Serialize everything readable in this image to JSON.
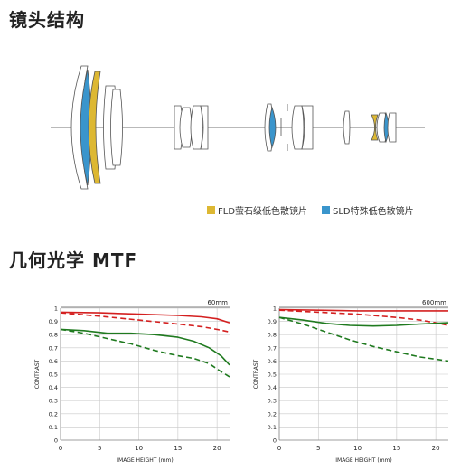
{
  "headings": {
    "lens_structure": "镜头结构",
    "mtf": "几何光学 MTF"
  },
  "legend": {
    "fld": {
      "label": "FLD萤石级低色散镜片",
      "color": "#ddb833"
    },
    "sld": {
      "label": "SLD特殊低色散镜片",
      "color": "#3a95cc"
    }
  },
  "chart_data": [
    {
      "type": "line",
      "title": "60mm",
      "xlabel": "IMAGE HEIGHT (mm)",
      "ylabel": "CONTRAST",
      "xlim": [
        0,
        21.6
      ],
      "ylim": [
        0,
        1
      ],
      "xticks": [
        0,
        5,
        10,
        15,
        20
      ],
      "yticks": [
        0,
        0.1,
        0.2,
        0.3,
        0.4,
        0.5,
        0.6,
        0.7,
        0.8,
        0.9,
        1
      ],
      "ytick_labels": [
        "0",
        "0.1",
        "0.2",
        "0.3",
        "0.4",
        "0.5",
        "0.6",
        "0.7",
        "0.8",
        "0.9",
        "1"
      ],
      "grid": true,
      "series": [
        {
          "color": "#d42020",
          "dash": "solid",
          "x": [
            0,
            5,
            10,
            15,
            18,
            20,
            21.6
          ],
          "values": [
            0.97,
            0.965,
            0.955,
            0.945,
            0.935,
            0.92,
            0.89
          ]
        },
        {
          "color": "#d42020",
          "dash": "dashed",
          "x": [
            0,
            5,
            10,
            15,
            18,
            20,
            21.6
          ],
          "values": [
            0.965,
            0.94,
            0.91,
            0.88,
            0.86,
            0.84,
            0.82
          ]
        },
        {
          "color": "#1f7a1f",
          "dash": "solid",
          "x": [
            0,
            3,
            6,
            9,
            12,
            15,
            17,
            19,
            20.5,
            21.6
          ],
          "values": [
            0.84,
            0.83,
            0.81,
            0.81,
            0.8,
            0.78,
            0.75,
            0.7,
            0.64,
            0.57
          ]
        },
        {
          "color": "#1f7a1f",
          "dash": "dashed",
          "x": [
            0,
            3,
            6,
            9,
            12,
            15,
            17,
            19,
            20.5,
            21.6
          ],
          "values": [
            0.84,
            0.81,
            0.77,
            0.73,
            0.68,
            0.64,
            0.62,
            0.58,
            0.52,
            0.48
          ]
        }
      ]
    },
    {
      "type": "line",
      "title": "600mm",
      "xlabel": "IMAGE HEIGHT (mm)",
      "ylabel": "CONTRAST",
      "xlim": [
        0,
        21.6
      ],
      "ylim": [
        0,
        1
      ],
      "xticks": [
        0,
        5,
        10,
        15,
        20
      ],
      "yticks": [
        0,
        0.1,
        0.2,
        0.3,
        0.4,
        0.5,
        0.6,
        0.7,
        0.8,
        0.9,
        1
      ],
      "ytick_labels": [
        "0",
        "0.1",
        "0.2",
        "0.3",
        "0.4",
        "0.5",
        "0.6",
        "0.7",
        "0.8",
        "0.9",
        "1"
      ],
      "grid": true,
      "series": [
        {
          "color": "#d42020",
          "dash": "solid",
          "x": [
            0,
            5,
            10,
            15,
            20,
            21.6
          ],
          "values": [
            0.99,
            0.985,
            0.98,
            0.98,
            0.98,
            0.98
          ]
        },
        {
          "color": "#d42020",
          "dash": "dashed",
          "x": [
            0,
            5,
            10,
            15,
            18,
            20,
            21.6
          ],
          "values": [
            0.985,
            0.97,
            0.955,
            0.93,
            0.91,
            0.89,
            0.87
          ]
        },
        {
          "color": "#1f7a1f",
          "dash": "solid",
          "x": [
            0,
            3,
            6,
            9,
            12,
            15,
            18,
            21.6
          ],
          "values": [
            0.93,
            0.91,
            0.885,
            0.87,
            0.865,
            0.87,
            0.88,
            0.89
          ]
        },
        {
          "color": "#1f7a1f",
          "dash": "dashed",
          "x": [
            0,
            3,
            6,
            9,
            12,
            15,
            18,
            21.6
          ],
          "values": [
            0.93,
            0.88,
            0.82,
            0.76,
            0.71,
            0.67,
            0.63,
            0.6
          ]
        }
      ]
    }
  ]
}
